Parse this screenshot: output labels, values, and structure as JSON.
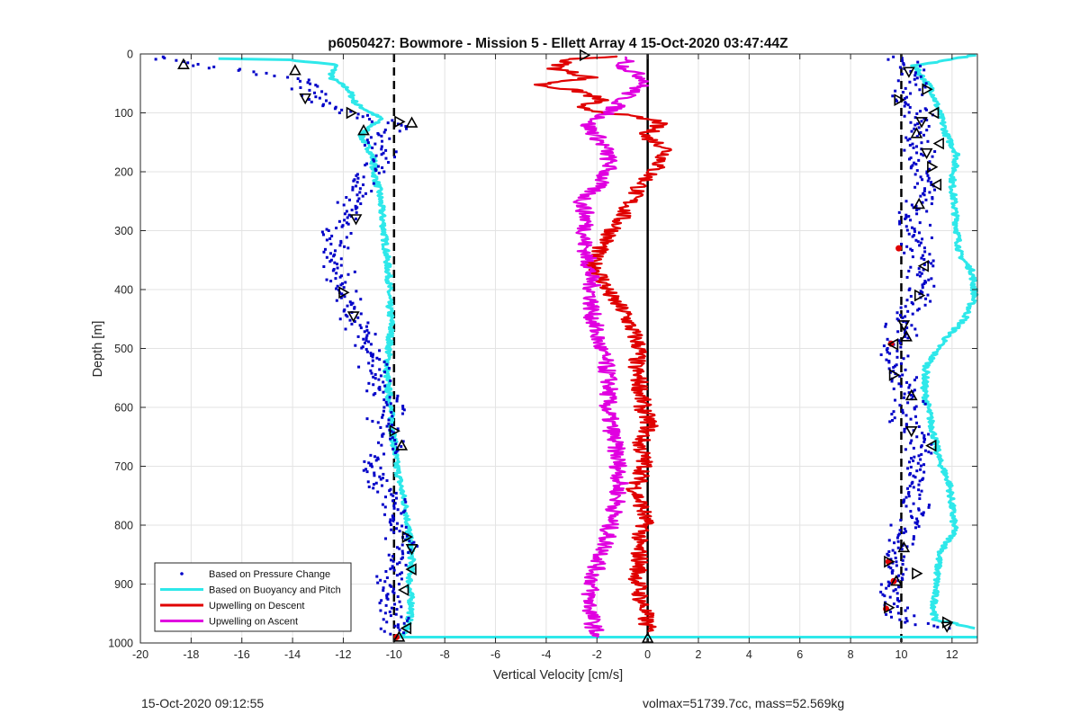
{
  "chart_data": {
    "type": "scatter",
    "title": "p6050427: Bowmore - Mission 5 - Ellett Array 4 15-Oct-2020 03:47:44Z",
    "xlabel": "Vertical Velocity [cm/s]",
    "ylabel": "Depth [m]",
    "xlim": [
      -20,
      13
    ],
    "ylim": [
      0,
      1000
    ],
    "y_reversed": true,
    "grid": true,
    "legend_position": "bottom-left",
    "x_ticks": [
      -20,
      -18,
      -16,
      -14,
      -12,
      -10,
      -8,
      -6,
      -4,
      -2,
      0,
      2,
      4,
      6,
      8,
      10,
      12
    ],
    "y_ticks": [
      0,
      100,
      200,
      300,
      400,
      500,
      600,
      700,
      800,
      900,
      1000
    ],
    "reference_lines": [
      {
        "x": -10,
        "style": "dashed",
        "color": "#000000"
      },
      {
        "x": 0,
        "style": "solid",
        "color": "#000000"
      },
      {
        "x": 10,
        "style": "dashed",
        "color": "#000000"
      }
    ],
    "series": [
      {
        "name": "Based on Pressure Change",
        "color": "#0000c8",
        "marker": "dot",
        "points": [
          [
            [
              -19.3,
              5
            ],
            [
              -18.4,
              15
            ],
            [
              -17.3,
              20
            ],
            [
              -16.2,
              28
            ],
            [
              -15.0,
              35
            ],
            [
              -14.0,
              42
            ],
            [
              -13.5,
              55
            ],
            [
              -13.2,
              75
            ],
            [
              -12.6,
              88
            ],
            [
              -11.7,
              100
            ],
            [
              -10.2,
              115
            ],
            [
              -9.5,
              125
            ],
            [
              -10.5,
              135
            ],
            [
              -10.8,
              155
            ],
            [
              -10.4,
              175
            ],
            [
              -10.9,
              200
            ],
            [
              -11.2,
              220
            ],
            [
              -11.6,
              250
            ],
            [
              -11.8,
              280
            ],
            [
              -12.4,
              300
            ],
            [
              -12.1,
              325
            ],
            [
              -12.4,
              350
            ],
            [
              -12.0,
              390
            ],
            [
              -12.2,
              405
            ],
            [
              -11.6,
              430
            ],
            [
              -11.7,
              450
            ],
            [
              -11.1,
              480
            ],
            [
              -10.9,
              510
            ],
            [
              -10.6,
              540
            ],
            [
              -10.5,
              570
            ],
            [
              -10.2,
              600
            ],
            [
              -10.4,
              630
            ],
            [
              -10.0,
              660
            ],
            [
              -10.6,
              690
            ],
            [
              -10.8,
              720
            ],
            [
              -10.2,
              750
            ],
            [
              -10.0,
              780
            ],
            [
              -9.8,
              810
            ],
            [
              -9.6,
              840
            ],
            [
              -10.0,
              870
            ],
            [
              -10.3,
              900
            ],
            [
              -10.0,
              930
            ],
            [
              -9.8,
              960
            ],
            [
              -9.9,
              985
            ]
          ],
          [
            [
              9.8,
              5
            ],
            [
              10.4,
              25
            ],
            [
              10.6,
              50
            ],
            [
              10.1,
              80
            ],
            [
              10.8,
              110
            ],
            [
              10.6,
              140
            ],
            [
              10.7,
              170
            ],
            [
              10.9,
              200
            ],
            [
              11.0,
              220
            ],
            [
              10.8,
              250
            ],
            [
              10.4,
              280
            ],
            [
              10.6,
              310
            ],
            [
              10.7,
              340
            ],
            [
              11.0,
              360
            ],
            [
              10.7,
              390
            ],
            [
              10.6,
              420
            ],
            [
              10.0,
              450
            ],
            [
              9.9,
              480
            ],
            [
              9.6,
              500
            ],
            [
              9.8,
              530
            ],
            [
              10.1,
              560
            ],
            [
              10.4,
              590
            ],
            [
              10.0,
              620
            ],
            [
              10.5,
              650
            ],
            [
              10.8,
              680
            ],
            [
              10.8,
              710
            ],
            [
              10.5,
              740
            ],
            [
              10.6,
              770
            ],
            [
              10.3,
              800
            ],
            [
              10.0,
              830
            ],
            [
              9.6,
              860
            ],
            [
              9.8,
              890
            ],
            [
              9.4,
              920
            ],
            [
              9.6,
              945
            ],
            [
              10.3,
              965
            ],
            [
              11.6,
              975
            ]
          ]
        ]
      },
      {
        "name": "Based on Buoyancy and Pitch",
        "color": "#2ee8ea",
        "marker": "line",
        "points": [
          [
            [
              -16.8,
              8
            ],
            [
              -14.2,
              10
            ],
            [
              -12.3,
              18
            ],
            [
              -12.5,
              40
            ],
            [
              -11.8,
              60
            ],
            [
              -11.5,
              85
            ],
            [
              -10.5,
              110
            ],
            [
              -11.0,
              125
            ],
            [
              -11.3,
              140
            ],
            [
              -11.0,
              160
            ],
            [
              -10.8,
              180
            ],
            [
              -10.8,
              200
            ],
            [
              -10.6,
              230
            ],
            [
              -10.5,
              260
            ],
            [
              -10.4,
              300
            ],
            [
              -10.3,
              340
            ],
            [
              -10.2,
              380
            ],
            [
              -10.2,
              420
            ],
            [
              -10.1,
              460
            ],
            [
              -10.2,
              500
            ],
            [
              -10.3,
              540
            ],
            [
              -10.2,
              580
            ],
            [
              -10.1,
              620
            ],
            [
              -10.0,
              660
            ],
            [
              -9.9,
              700
            ],
            [
              -9.7,
              740
            ],
            [
              -9.5,
              780
            ],
            [
              -9.4,
              820
            ],
            [
              -9.3,
              860
            ],
            [
              -9.4,
              900
            ],
            [
              -9.3,
              940
            ],
            [
              -9.5,
              980
            ],
            [
              -9.8,
              990
            ],
            [
              13.0,
              990
            ]
          ],
          [
            [
              12.9,
              2
            ],
            [
              10.5,
              20
            ],
            [
              11.2,
              60
            ],
            [
              11.5,
              100
            ],
            [
              11.8,
              140
            ],
            [
              12.2,
              170
            ],
            [
              12.0,
              220
            ],
            [
              12.1,
              260
            ],
            [
              12.2,
              300
            ],
            [
              12.3,
              340
            ],
            [
              12.8,
              370
            ],
            [
              12.9,
              410
            ],
            [
              12.5,
              450
            ],
            [
              11.6,
              490
            ],
            [
              11.0,
              530
            ],
            [
              10.9,
              570
            ],
            [
              11.1,
              610
            ],
            [
              11.3,
              650
            ],
            [
              11.5,
              690
            ],
            [
              11.9,
              730
            ],
            [
              12.0,
              770
            ],
            [
              12.1,
              810
            ],
            [
              11.5,
              850
            ],
            [
              11.4,
              890
            ],
            [
              11.3,
              930
            ],
            [
              11.3,
              960
            ],
            [
              12.9,
              975
            ]
          ]
        ]
      },
      {
        "name": "Upwelling on Descent",
        "color": "#e00000",
        "marker": "line",
        "points": [
          [
            -1.0,
            3
          ],
          [
            -3.2,
            10
          ],
          [
            -3.6,
            25
          ],
          [
            -2.2,
            40
          ],
          [
            -4.3,
            52
          ],
          [
            -2.5,
            65
          ],
          [
            -1.8,
            80
          ],
          [
            -3.0,
            90
          ],
          [
            -1.5,
            100
          ],
          [
            0.5,
            115
          ],
          [
            -0.1,
            140
          ],
          [
            0.8,
            160
          ],
          [
            0.6,
            180
          ],
          [
            0.2,
            200
          ],
          [
            -0.4,
            230
          ],
          [
            -0.8,
            260
          ],
          [
            -1.2,
            290
          ],
          [
            -1.7,
            320
          ],
          [
            -2.2,
            350
          ],
          [
            -1.8,
            380
          ],
          [
            -1.5,
            410
          ],
          [
            -0.9,
            440
          ],
          [
            -0.6,
            470
          ],
          [
            -0.3,
            500
          ],
          [
            -0.5,
            530
          ],
          [
            -0.3,
            560
          ],
          [
            -0.2,
            600
          ],
          [
            0.1,
            630
          ],
          [
            -0.3,
            660
          ],
          [
            -0.1,
            700
          ],
          [
            -0.5,
            740
          ],
          [
            -0.2,
            770
          ],
          [
            -0.1,
            800
          ],
          [
            -0.4,
            830
          ],
          [
            -0.3,
            860
          ],
          [
            -0.4,
            890
          ],
          [
            -0.3,
            920
          ],
          [
            -0.1,
            950
          ],
          [
            0.0,
            980
          ]
        ]
      },
      {
        "name": "Upwelling on Ascent",
        "color": "#e000e0",
        "marker": "line",
        "points": [
          [
            -0.6,
            5
          ],
          [
            -1.0,
            20
          ],
          [
            0.0,
            45
          ],
          [
            -0.8,
            70
          ],
          [
            -1.5,
            100
          ],
          [
            -2.4,
            120
          ],
          [
            -2.0,
            140
          ],
          [
            -1.6,
            165
          ],
          [
            -1.5,
            190
          ],
          [
            -1.9,
            220
          ],
          [
            -2.6,
            250
          ],
          [
            -2.4,
            280
          ],
          [
            -2.5,
            320
          ],
          [
            -2.3,
            360
          ],
          [
            -2.2,
            400
          ],
          [
            -2.2,
            440
          ],
          [
            -2.0,
            480
          ],
          [
            -1.7,
            520
          ],
          [
            -1.5,
            560
          ],
          [
            -1.6,
            600
          ],
          [
            -1.4,
            640
          ],
          [
            -1.2,
            680
          ],
          [
            -1.1,
            720
          ],
          [
            -1.2,
            760
          ],
          [
            -1.5,
            800
          ],
          [
            -1.7,
            840
          ],
          [
            -2.1,
            880
          ],
          [
            -2.3,
            920
          ],
          [
            -2.2,
            960
          ],
          [
            -2.0,
            990
          ]
        ]
      }
    ],
    "triangle_markers": [
      {
        "x": -18.3,
        "y": 18,
        "dir": "up"
      },
      {
        "x": -13.9,
        "y": 28,
        "dir": "up"
      },
      {
        "x": -13.5,
        "y": 75,
        "dir": "down"
      },
      {
        "x": -11.7,
        "y": 100,
        "dir": "right"
      },
      {
        "x": -9.8,
        "y": 115,
        "dir": "right"
      },
      {
        "x": -9.3,
        "y": 117,
        "dir": "up"
      },
      {
        "x": -11.2,
        "y": 130,
        "dir": "up"
      },
      {
        "x": -11.5,
        "y": 280,
        "dir": "down"
      },
      {
        "x": -12.0,
        "y": 405,
        "dir": "right"
      },
      {
        "x": -11.6,
        "y": 445,
        "dir": "down"
      },
      {
        "x": -10.0,
        "y": 640,
        "dir": "right"
      },
      {
        "x": -9.7,
        "y": 665,
        "dir": "up"
      },
      {
        "x": -9.5,
        "y": 820,
        "dir": "right"
      },
      {
        "x": -9.3,
        "y": 840,
        "dir": "down"
      },
      {
        "x": -9.3,
        "y": 875,
        "dir": "left"
      },
      {
        "x": -9.6,
        "y": 910,
        "dir": "left"
      },
      {
        "x": -9.5,
        "y": 975,
        "dir": "left"
      },
      {
        "x": -9.8,
        "y": 990,
        "dir": "up"
      },
      {
        "x": -2.5,
        "y": 2,
        "dir": "right"
      },
      {
        "x": 0.0,
        "y": 992,
        "dir": "up"
      },
      {
        "x": 10.3,
        "y": 30,
        "dir": "down"
      },
      {
        "x": 11.0,
        "y": 60,
        "dir": "right"
      },
      {
        "x": 9.9,
        "y": 78,
        "dir": "right"
      },
      {
        "x": 11.3,
        "y": 100,
        "dir": "left"
      },
      {
        "x": 10.8,
        "y": 115,
        "dir": "down"
      },
      {
        "x": 10.6,
        "y": 135,
        "dir": "up"
      },
      {
        "x": 11.5,
        "y": 152,
        "dir": "left"
      },
      {
        "x": 11.0,
        "y": 168,
        "dir": "down"
      },
      {
        "x": 11.2,
        "y": 192,
        "dir": "right"
      },
      {
        "x": 11.4,
        "y": 222,
        "dir": "left"
      },
      {
        "x": 10.7,
        "y": 255,
        "dir": "up"
      },
      {
        "x": 10.9,
        "y": 360,
        "dir": "left"
      },
      {
        "x": 10.7,
        "y": 410,
        "dir": "right"
      },
      {
        "x": 10.1,
        "y": 460,
        "dir": "down"
      },
      {
        "x": 10.2,
        "y": 480,
        "dir": "up"
      },
      {
        "x": 9.7,
        "y": 493,
        "dir": "left"
      },
      {
        "x": 9.7,
        "y": 545,
        "dir": "right"
      },
      {
        "x": 10.4,
        "y": 580,
        "dir": "up"
      },
      {
        "x": 10.4,
        "y": 640,
        "dir": "down"
      },
      {
        "x": 11.2,
        "y": 665,
        "dir": "left"
      },
      {
        "x": 10.1,
        "y": 838,
        "dir": "up"
      },
      {
        "x": 9.5,
        "y": 862,
        "dir": "right"
      },
      {
        "x": 10.6,
        "y": 882,
        "dir": "right"
      },
      {
        "x": 9.8,
        "y": 895,
        "dir": "up"
      },
      {
        "x": 9.5,
        "y": 940,
        "dir": "right"
      },
      {
        "x": 11.8,
        "y": 965,
        "dir": "right"
      },
      {
        "x": 11.8,
        "y": 972,
        "dir": "down"
      }
    ],
    "red_dots": [
      [
        9.6,
        492
      ],
      [
        9.5,
        862
      ],
      [
        9.7,
        895
      ],
      [
        9.4,
        942
      ],
      [
        9.9,
        330
      ],
      [
        -9.9,
        990
      ]
    ]
  },
  "footer": {
    "left_text": "15-Oct-2020 09:12:55",
    "right_text": "volmax=51739.7cc, mass=52.569kg"
  }
}
